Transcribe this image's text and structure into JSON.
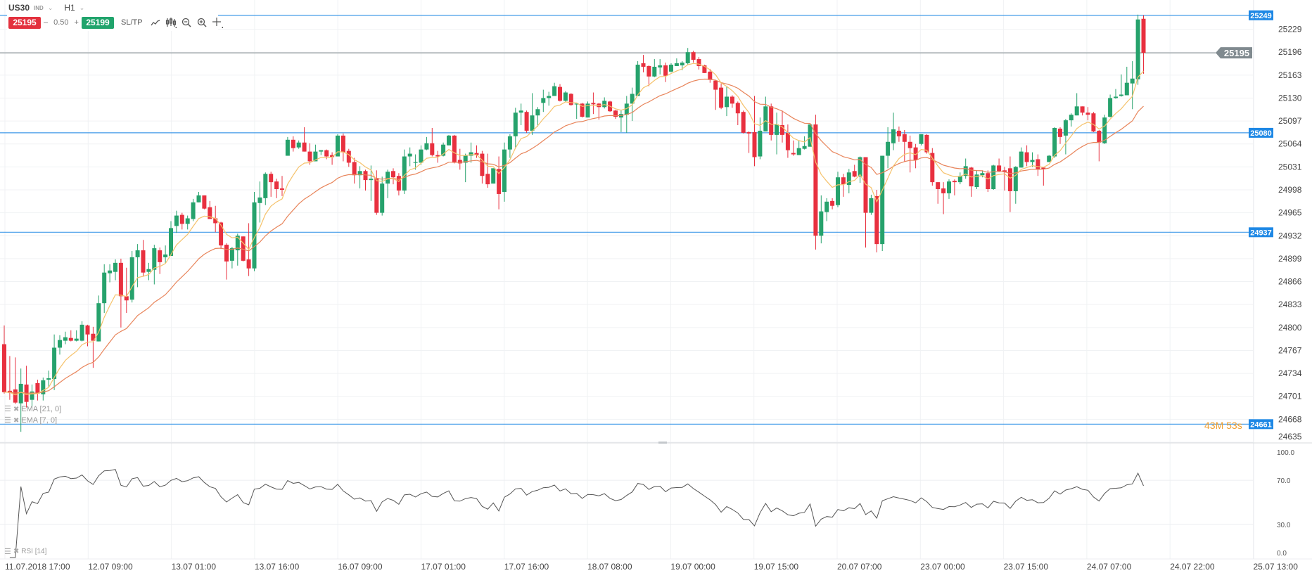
{
  "toolbar": {
    "symbol": "US30",
    "symbol_class": "IND",
    "timeframe": "H1",
    "sell_price": "25195",
    "volume": "0.50",
    "minus": "–",
    "plus": "+",
    "buy_price": "25199",
    "sltp_label": "SL/TP",
    "icons": [
      "line-chart-icon",
      "candlestick-icon",
      "zoom-out-icon",
      "zoom-in-icon",
      "crosshair-icon"
    ]
  },
  "indicators": {
    "ema_slow_label": "EMA [21, 0]",
    "ema_fast_label": "EMA [7, 0]",
    "rsi_label": "RSI [14]"
  },
  "countdown": "43M 53s",
  "colors": {
    "up": "#26a26c",
    "down": "#e8303f",
    "ema_fast": "#f5c26b",
    "ema_slow": "#e8845a",
    "level_line": "#1e88e5",
    "current_price": "#808a8f",
    "rsi_line": "#555555",
    "countdown": "#f0a030"
  },
  "chart_data": {
    "type": "candlestick",
    "instrument": "US30",
    "timeframe": "H1",
    "ylim": [
      24634,
      25271
    ],
    "grid": true,
    "price_ticks": [
      25229,
      25196,
      25163,
      25130,
      25097,
      25064,
      25031,
      24998,
      24965,
      24932,
      24899,
      24866,
      24833,
      24800,
      24767,
      24734,
      24701,
      24668,
      24635
    ],
    "time_ticks": [
      "11.07.2018 17:00",
      "12.07 09:00",
      "13.07 01:00",
      "13.07 16:00",
      "16.07 09:00",
      "17.07 01:00",
      "17.07 16:00",
      "18.07 08:00",
      "19.07 00:00",
      "19.07 15:00",
      "20.07 07:00",
      "23.07 00:00",
      "23.07 15:00",
      "24.07 07:00",
      "24.07 22:00",
      "25.07 13:00"
    ],
    "horizontal_levels": [
      {
        "value": 25249,
        "label": "25249"
      },
      {
        "value": 25080,
        "label": "25080"
      },
      {
        "value": 24937,
        "label": "24937"
      },
      {
        "value": 24661,
        "label": "24661"
      }
    ],
    "current_price": {
      "value": 25195,
      "label": "25195"
    },
    "ema_periods": {
      "fast": 7,
      "slow": 21
    },
    "rsi": {
      "period": 14,
      "ylim": [
        0,
        100
      ],
      "ticks": [
        "100.0",
        "70.0",
        "30.0",
        "0.0"
      ],
      "levels": [
        70,
        30
      ]
    },
    "ohlc_columns": [
      "open",
      "high",
      "low",
      "close"
    ],
    "candles": [
      [
        24776,
        24803,
        24705,
        24707
      ],
      [
        24709,
        24759,
        24696,
        24706
      ],
      [
        24711,
        24757,
        24690,
        24692
      ],
      [
        24691,
        24741,
        24650,
        24719
      ],
      [
        24718,
        24745,
        24685,
        24693
      ],
      [
        24696,
        24718,
        24685,
        24708
      ],
      [
        24720,
        24725,
        24695,
        24705
      ],
      [
        24704,
        24728,
        24695,
        24724
      ],
      [
        24725,
        24738,
        24715,
        24727
      ],
      [
        24726,
        24790,
        24710,
        24771
      ],
      [
        24771,
        24789,
        24761,
        24782
      ],
      [
        24781,
        24794,
        24776,
        24786
      ],
      [
        24785,
        24796,
        24780,
        24781
      ],
      [
        24781,
        24796,
        24780,
        24784
      ],
      [
        24781,
        24809,
        24780,
        24804
      ],
      [
        24803,
        24804,
        24773,
        24790
      ],
      [
        24791,
        24801,
        24742,
        24781
      ],
      [
        24780,
        24846,
        24780,
        24835
      ],
      [
        24835,
        24891,
        24821,
        24879
      ],
      [
        24878,
        24891,
        24865,
        24882
      ],
      [
        24880,
        24898,
        24868,
        24893
      ],
      [
        24893,
        24899,
        24800,
        24845
      ],
      [
        24845,
        24886,
        24821,
        24839
      ],
      [
        24840,
        24910,
        24836,
        24901
      ],
      [
        24901,
        24920,
        24858,
        24911
      ],
      [
        24911,
        24926,
        24874,
        24879
      ],
      [
        24880,
        24893,
        24868,
        24884
      ],
      [
        24883,
        24919,
        24862,
        24914
      ],
      [
        24911,
        24915,
        24877,
        24894
      ],
      [
        24901,
        24918,
        24893,
        24905
      ],
      [
        24903,
        24953,
        24903,
        24943
      ],
      [
        24946,
        24968,
        24936,
        24961
      ],
      [
        24962,
        24965,
        24941,
        24949
      ],
      [
        24949,
        24961,
        24941,
        24957
      ],
      [
        24956,
        24985,
        24953,
        24980
      ],
      [
        24980,
        24995,
        24980,
        24990
      ],
      [
        24990,
        24990,
        24970,
        24971
      ],
      [
        24973,
        24982,
        24956,
        24956
      ],
      [
        24957,
        24975,
        24937,
        24950
      ],
      [
        24951,
        24952,
        24913,
        24918
      ],
      [
        24919,
        24921,
        24869,
        24895
      ],
      [
        24896,
        24916,
        24885,
        24914
      ],
      [
        24911,
        24935,
        24889,
        24932
      ],
      [
        24931,
        24931,
        24895,
        24896
      ],
      [
        24898,
        24950,
        24874,
        24885
      ],
      [
        24885,
        24995,
        24881,
        24980
      ],
      [
        24979,
        25010,
        24951,
        24987
      ],
      [
        24986,
        25023,
        24976,
        25021
      ],
      [
        25021,
        25024,
        24988,
        25009
      ],
      [
        25010,
        25014,
        24986,
        24999
      ],
      [
        25000,
        25018,
        24989,
        24998
      ],
      [
        25047,
        25074,
        25047,
        25070
      ],
      [
        25070,
        25075,
        25053,
        25058
      ],
      [
        25059,
        25069,
        25057,
        25066
      ],
      [
        25066,
        25088,
        25053,
        25053
      ],
      [
        25053,
        25065,
        25034,
        25039
      ],
      [
        25039,
        25063,
        25039,
        25053
      ],
      [
        25053,
        25055,
        25048,
        25055
      ],
      [
        25055,
        25056,
        25042,
        25046
      ],
      [
        25048,
        25052,
        25034,
        25045
      ],
      [
        25046,
        25078,
        25046,
        25076
      ],
      [
        25076,
        25079,
        25039,
        25052
      ],
      [
        25054,
        25057,
        25031,
        25037
      ],
      [
        25038,
        25044,
        25007,
        25019
      ],
      [
        25019,
        25032,
        25000,
        25025
      ],
      [
        25025,
        25027,
        24997,
        25012
      ],
      [
        25012,
        25033,
        24982,
        25014
      ],
      [
        25015,
        25026,
        24962,
        24965
      ],
      [
        24965,
        25017,
        24961,
        25007
      ],
      [
        25007,
        25027,
        24986,
        25024
      ],
      [
        25025,
        25029,
        25006,
        25016
      ],
      [
        25018,
        25022,
        24990,
        24997
      ],
      [
        24997,
        25056,
        24992,
        25046
      ],
      [
        25046,
        25059,
        25032,
        25050
      ],
      [
        25037,
        25049,
        25027,
        25038
      ],
      [
        25037,
        25062,
        25034,
        25056
      ],
      [
        25056,
        25074,
        25055,
        25065
      ],
      [
        25065,
        25087,
        25046,
        25048
      ],
      [
        25048,
        25054,
        25037,
        25046
      ],
      [
        25047,
        25066,
        25046,
        25063
      ],
      [
        25062,
        25077,
        25062,
        25076
      ],
      [
        25076,
        25077,
        25036,
        25037
      ],
      [
        25041,
        25057,
        25027,
        25036
      ],
      [
        25037,
        25050,
        25009,
        25047
      ],
      [
        25047,
        25066,
        25037,
        25052
      ],
      [
        25051,
        25062,
        25044,
        25048
      ],
      [
        25050,
        25054,
        25007,
        25018
      ],
      [
        25021,
        25050,
        25001,
        25006
      ],
      [
        25007,
        25029,
        25007,
        25029
      ],
      [
        25028,
        25046,
        24970,
        24992
      ],
      [
        24995,
        25066,
        24981,
        25056
      ],
      [
        25056,
        25078,
        25044,
        25075
      ],
      [
        25075,
        25116,
        25059,
        25109
      ],
      [
        25109,
        25122,
        25091,
        25112
      ],
      [
        25110,
        25112,
        25080,
        25083
      ],
      [
        25083,
        25137,
        25077,
        25105
      ],
      [
        25105,
        25117,
        25089,
        25114
      ],
      [
        25123,
        25142,
        25110,
        25130
      ],
      [
        25130,
        25139,
        25119,
        25133
      ],
      [
        25133,
        25152,
        25133,
        25147
      ],
      [
        25146,
        25150,
        25125,
        25126
      ],
      [
        25126,
        25140,
        25124,
        25138
      ],
      [
        25136,
        25137,
        25119,
        25120
      ],
      [
        25121,
        25122,
        25100,
        25122
      ],
      [
        25122,
        25123,
        25102,
        25103
      ],
      [
        25102,
        25125,
        25102,
        25122
      ],
      [
        25123,
        25138,
        25107,
        25121
      ],
      [
        25122,
        25123,
        25099,
        25117
      ],
      [
        25117,
        25131,
        25115,
        25126
      ],
      [
        25125,
        25126,
        25110,
        25111
      ],
      [
        25112,
        25113,
        25100,
        25103
      ],
      [
        25102,
        25112,
        25081,
        25107
      ],
      [
        25106,
        25133,
        25080,
        25122
      ],
      [
        25122,
        25145,
        25097,
        25136
      ],
      [
        25133,
        25183,
        25133,
        25178
      ],
      [
        25180,
        25192,
        25167,
        25175
      ],
      [
        25176,
        25177,
        25147,
        25161
      ],
      [
        25161,
        25186,
        25160,
        25175
      ],
      [
        25174,
        25186,
        25164,
        25177
      ],
      [
        25177,
        25181,
        25153,
        25162
      ],
      [
        25168,
        25180,
        25167,
        25178
      ],
      [
        25176,
        25187,
        25176,
        25180
      ],
      [
        25177,
        25183,
        25170,
        25181
      ],
      [
        25180,
        25202,
        25178,
        25196
      ],
      [
        25196,
        25198,
        25181,
        25185
      ],
      [
        25186,
        25189,
        25171,
        25176
      ],
      [
        25177,
        25178,
        25166,
        25166
      ],
      [
        25168,
        25172,
        25152,
        25156
      ],
      [
        25155,
        25156,
        25113,
        25142
      ],
      [
        25145,
        25151,
        25114,
        25116
      ],
      [
        25117,
        25146,
        25104,
        25132
      ],
      [
        25132,
        25134,
        25116,
        25122
      ],
      [
        25123,
        25125,
        25091,
        25108
      ],
      [
        25110,
        25112,
        25079,
        25080
      ],
      [
        25081,
        25082,
        25051,
        25079
      ],
      [
        25081,
        25133,
        25032,
        25045
      ],
      [
        25046,
        25102,
        25042,
        25083
      ],
      [
        25082,
        25132,
        25082,
        25118
      ],
      [
        25118,
        25122,
        25069,
        25077
      ],
      [
        25077,
        25109,
        25049,
        25092
      ],
      [
        25091,
        25112,
        25066,
        25077
      ],
      [
        25080,
        25092,
        25044,
        25055
      ],
      [
        25051,
        25069,
        25047,
        25049
      ],
      [
        25048,
        25069,
        25048,
        25058
      ],
      [
        25057,
        25075,
        25056,
        25061
      ],
      [
        25060,
        25093,
        25060,
        25092
      ],
      [
        25092,
        25106,
        24912,
        24932
      ],
      [
        24932,
        24990,
        24921,
        24967
      ],
      [
        24966,
        24986,
        24953,
        24981
      ],
      [
        24982,
        24986,
        24970,
        24975
      ],
      [
        24976,
        25024,
        24973,
        25016
      ],
      [
        25016,
        25021,
        24988,
        25006
      ],
      [
        25005,
        25028,
        24993,
        25023
      ],
      [
        25025,
        25034,
        25016,
        25017
      ],
      [
        25017,
        25046,
        25008,
        25045
      ],
      [
        25045,
        25045,
        24915,
        24965
      ],
      [
        24965,
        24991,
        24962,
        24986
      ],
      [
        24989,
        24998,
        24908,
        24920
      ],
      [
        24920,
        25047,
        24910,
        25047
      ],
      [
        25047,
        25088,
        25029,
        25067
      ],
      [
        25065,
        25109,
        25055,
        25085
      ],
      [
        25083,
        25089,
        25067,
        25075
      ],
      [
        25078,
        25084,
        25038,
        25067
      ],
      [
        25067,
        25076,
        25023,
        25058
      ],
      [
        25059,
        25064,
        25029,
        25041
      ],
      [
        25064,
        25078,
        25062,
        25078
      ],
      [
        25077,
        25078,
        25050,
        25052
      ],
      [
        25051,
        25058,
        25004,
        25009
      ],
      [
        25009,
        25009,
        24978,
        24999
      ],
      [
        25000,
        25009,
        24963,
        24993
      ],
      [
        24993,
        25013,
        24985,
        25010
      ],
      [
        25011,
        25013,
        24990,
        25009
      ],
      [
        25009,
        25023,
        25006,
        25018
      ],
      [
        25018,
        25043,
        25014,
        25032
      ],
      [
        25030,
        25031,
        24988,
        25003
      ],
      [
        25002,
        25026,
        24999,
        25020
      ],
      [
        25019,
        25026,
        25016,
        25022
      ],
      [
        25022,
        25026,
        24995,
        24999
      ],
      [
        24999,
        25034,
        24998,
        25033
      ],
      [
        25033,
        25043,
        25024,
        25025
      ],
      [
        25026,
        25031,
        24997,
        25024
      ],
      [
        25029,
        25046,
        24966,
        24996
      ],
      [
        24996,
        25032,
        24978,
        25031
      ],
      [
        25030,
        25059,
        25030,
        25053
      ],
      [
        25052,
        25062,
        25032,
        25038
      ],
      [
        25038,
        25052,
        25031,
        25041
      ],
      [
        25042,
        25049,
        25018,
        25027
      ],
      [
        25030,
        25030,
        25004,
        25028
      ],
      [
        25038,
        25048,
        25038,
        25047
      ],
      [
        25046,
        25088,
        25044,
        25087
      ],
      [
        25086,
        25088,
        25064,
        25074
      ],
      [
        25076,
        25100,
        25049,
        25098
      ],
      [
        25098,
        25108,
        25089,
        25106
      ],
      [
        25105,
        25137,
        25105,
        25118
      ],
      [
        25118,
        25118,
        25105,
        25109
      ],
      [
        25109,
        25117,
        25098,
        25106
      ],
      [
        25108,
        25110,
        25081,
        25082
      ],
      [
        25083,
        25084,
        25039,
        25066
      ],
      [
        25065,
        25106,
        25064,
        25102
      ],
      [
        25103,
        25135,
        25102,
        25130
      ],
      [
        25130,
        25143,
        25129,
        25132
      ],
      [
        25133,
        25164,
        25132,
        25135
      ],
      [
        25134,
        25175,
        25134,
        25152
      ],
      [
        25151,
        25183,
        25114,
        25158
      ],
      [
        25157,
        25250,
        25149,
        25243
      ],
      [
        25244,
        25249,
        25165,
        25195
      ]
    ]
  }
}
